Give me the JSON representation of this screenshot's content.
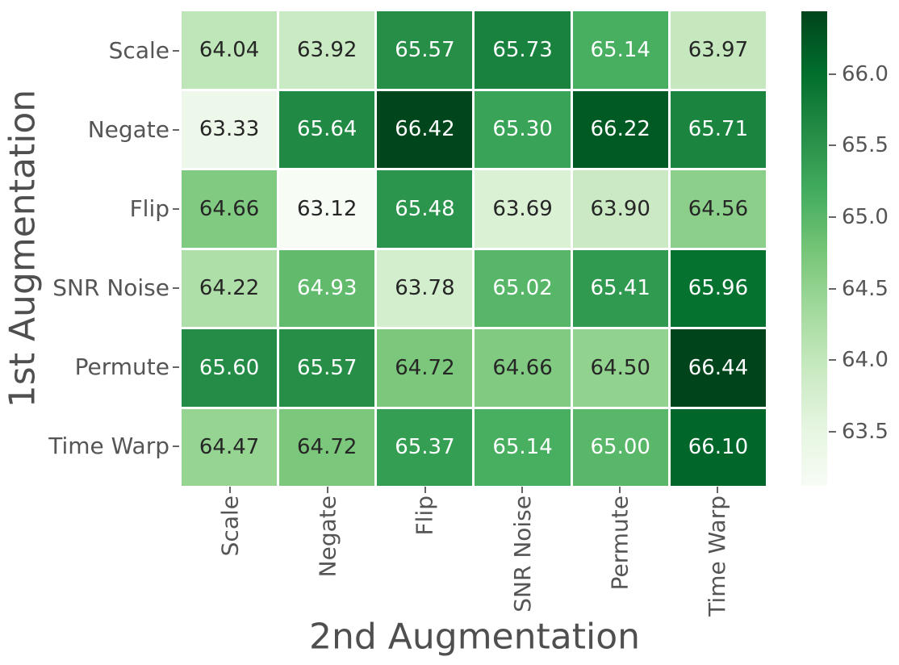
{
  "chart_data": {
    "type": "heatmap",
    "xlabel": "2nd Augmentation",
    "ylabel": "1st Augmentation",
    "x_categories": [
      "Scale",
      "Negate",
      "Flip",
      "SNR Noise",
      "Permute",
      "Time Warp"
    ],
    "y_categories": [
      "Scale",
      "Negate",
      "Flip",
      "SNR Noise",
      "Permute",
      "Time Warp"
    ],
    "values": [
      [
        64.04,
        63.92,
        65.57,
        65.73,
        65.14,
        63.97
      ],
      [
        63.33,
        65.64,
        66.42,
        65.3,
        66.22,
        65.71
      ],
      [
        64.66,
        63.12,
        65.48,
        63.69,
        63.9,
        64.56
      ],
      [
        64.22,
        64.93,
        63.78,
        65.02,
        65.41,
        65.96
      ],
      [
        65.6,
        65.57,
        64.72,
        64.66,
        64.5,
        66.44
      ],
      [
        64.47,
        64.72,
        65.37,
        65.14,
        65.0,
        66.1
      ]
    ],
    "vmin": 63.12,
    "vmax": 66.44,
    "colorbar_ticks": [
      66.0,
      65.5,
      65.0,
      64.5,
      64.0,
      63.5
    ],
    "colorbar_tick_decimals": 1,
    "cell_value_decimals": 2,
    "colormap": "Greens",
    "colormap_stops": [
      "#f7fcf5",
      "#e5f5e0",
      "#c7e9c0",
      "#a1d99b",
      "#74c476",
      "#41ab5d",
      "#238b45",
      "#006d2c",
      "#00441b"
    ],
    "grid": false,
    "legend_position": "colorbar-right"
  },
  "colors": {
    "background": "#ffffff",
    "annotation_dark": "#262626",
    "annotation_light": "#ffffff",
    "tick_text": "#555555",
    "title_text": "#4f4f4f",
    "tick_mark": "#666666"
  }
}
